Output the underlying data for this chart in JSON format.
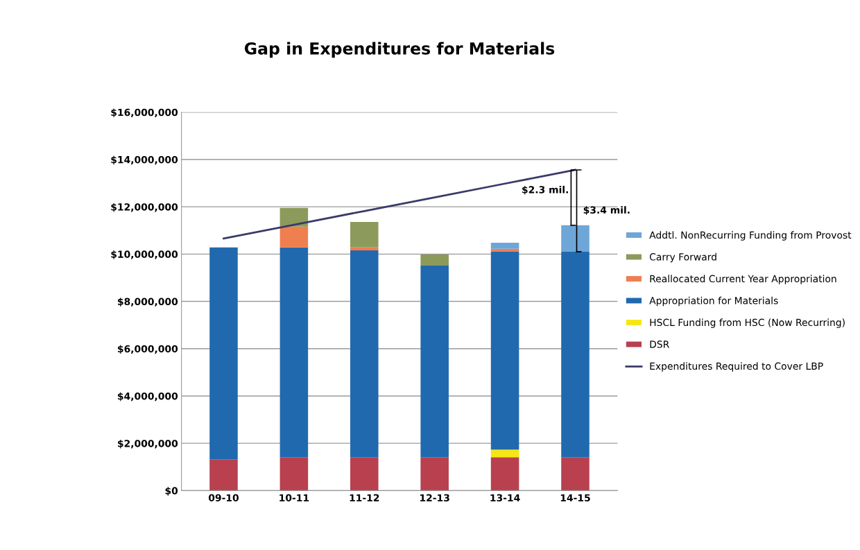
{
  "chart_data": {
    "type": "bar",
    "title": "Gap in Expenditures for Materials",
    "stacked": true,
    "categories": [
      "09-10",
      "10-11",
      "11-12",
      "12-13",
      "13-14",
      "14-15"
    ],
    "series": [
      {
        "name": "DSR",
        "color": "#b8404f",
        "values": [
          1320000,
          1410000,
          1410000,
          1410000,
          1410000,
          1410000
        ]
      },
      {
        "name": "HSCL Funding from HSC (Now Recurring)",
        "color": "#f5e614",
        "values": [
          null,
          null,
          null,
          null,
          320000,
          null
        ]
      },
      {
        "name": "Appropriation for Materials",
        "color": "#2169ae",
        "values": [
          8960000,
          8870000,
          8750000,
          8100000,
          8370000,
          8690000
        ]
      },
      {
        "name": "Reallocated Current Year Appropriation",
        "color": "#f07f4f",
        "values": [
          null,
          880000,
          120000,
          null,
          120000,
          null
        ]
      },
      {
        "name": "Carry Forward",
        "color": "#8c9a5b",
        "values": [
          null,
          790000,
          1080000,
          470000,
          null,
          null
        ]
      },
      {
        "name": "Addtl. NonRecurring Funding from Provost",
        "color": "#6ea6d8",
        "values": [
          null,
          null,
          null,
          null,
          260000,
          1120000
        ]
      },
      {
        "name": "Expenditures Required to Cover LBP",
        "color": "#3a3a6a",
        "type": "line",
        "values": [
          10660000,
          11240000,
          11820000,
          12400000,
          12980000,
          13560000
        ]
      }
    ],
    "ylim": [
      0,
      16000000
    ],
    "yticks": [
      {
        "value": 0,
        "label": "$0"
      },
      {
        "value": 2000000,
        "label": "$2,000,000"
      },
      {
        "value": 4000000,
        "label": "$4,000,000"
      },
      {
        "value": 6000000,
        "label": "$6,000,000"
      },
      {
        "value": 8000000,
        "label": "$8,000,000"
      },
      {
        "value": 10000000,
        "label": "$10,000,000"
      },
      {
        "value": 12000000,
        "label": "$12,000,000"
      },
      {
        "value": 14000000,
        "label": "$14,000,000"
      },
      {
        "value": 16000000,
        "label": "$16,000,000"
      }
    ],
    "grid": "y",
    "legend": "right",
    "marker": "none",
    "annotations": [
      "$2.3 mil.",
      "$3.4 mil."
    ]
  }
}
